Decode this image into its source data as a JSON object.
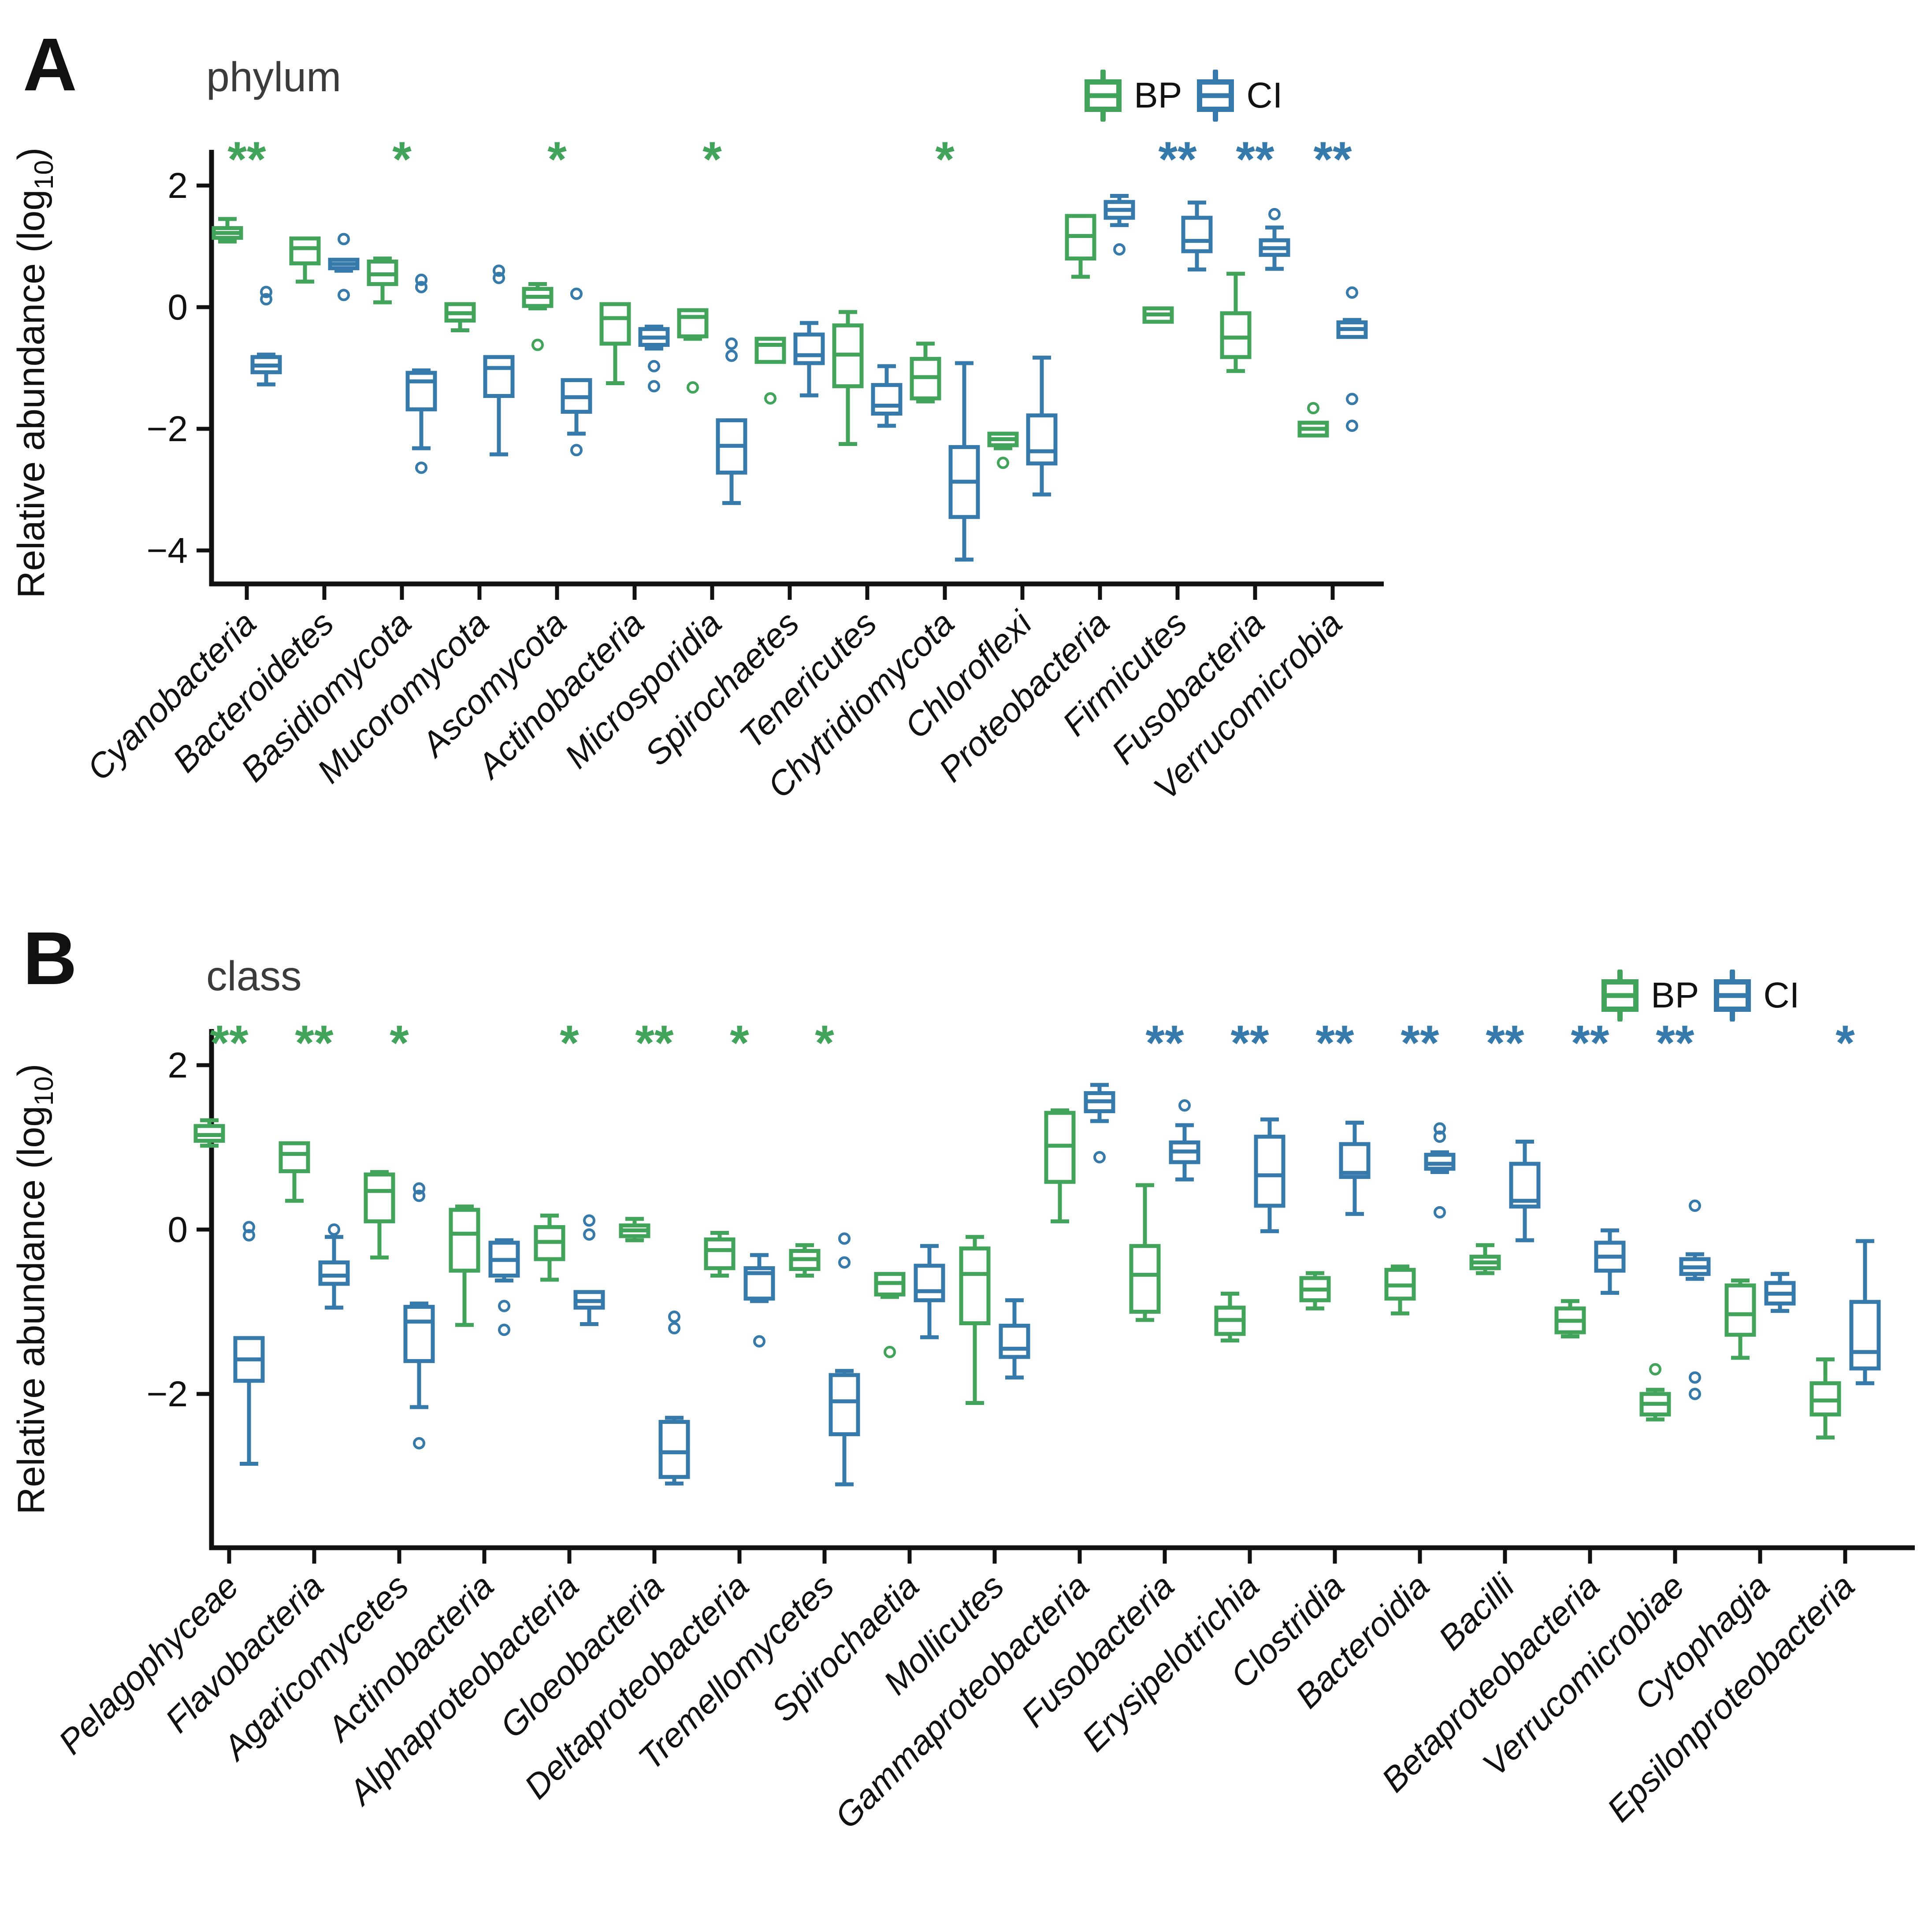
{
  "colors": {
    "bp": "#42a35a",
    "ci": "#3679ab",
    "axis": "#111111",
    "title": "#3b3b3b"
  },
  "legend": {
    "bp": "BP",
    "ci": "CI"
  },
  "chart_data": [
    {
      "type": "box",
      "panel_label": "A",
      "title": "phylum",
      "ylabel_prefix": "Relative abundance (log",
      "ylabel_sub": "10",
      "ylabel_suffix": ")",
      "yticks": [
        2,
        0,
        -2,
        -4
      ],
      "ylim": [
        -4.7,
        2.45
      ],
      "legend": {
        "bp": "BP",
        "ci": "CI"
      },
      "categories": [
        {
          "label": "Cyanobacteria",
          "sig": "**",
          "sig_group": "bp",
          "bp": {
            "stats": [
              1.08,
              1.14,
              1.22,
              1.3,
              1.45
            ],
            "fliers": []
          },
          "ci": {
            "stats": [
              -1.27,
              -1.07,
              -0.96,
              -0.82,
              -0.78
            ],
            "fliers": [
              0.25,
              0.13
            ]
          }
        },
        {
          "label": "Bacteroidetes",
          "sig": "",
          "sig_group": "",
          "bp": {
            "stats": [
              0.42,
              0.72,
              0.97,
              1.13,
              1.16
            ],
            "fliers": []
          },
          "ci": {
            "stats": [
              0.6,
              0.64,
              0.71,
              0.78,
              0.8
            ],
            "fliers": [
              1.12,
              0.2
            ]
          }
        },
        {
          "label": "Basidiomycota",
          "sig": "*",
          "sig_group": "bp",
          "bp": {
            "stats": [
              0.08,
              0.38,
              0.54,
              0.75,
              0.8
            ],
            "fliers": []
          },
          "ci": {
            "stats": [
              -2.32,
              -1.68,
              -1.22,
              -1.08,
              -1.04
            ],
            "fliers": [
              0.45,
              0.33,
              -2.64
            ]
          }
        },
        {
          "label": "Mucoromycota",
          "sig": "",
          "sig_group": "",
          "bp": {
            "stats": [
              -0.38,
              -0.22,
              -0.1,
              0.05,
              0.07
            ],
            "fliers": []
          },
          "ci": {
            "stats": [
              -2.42,
              -1.46,
              -1.0,
              -0.82,
              -0.8
            ],
            "fliers": [
              0.6,
              0.48
            ]
          }
        },
        {
          "label": "Ascomycota",
          "sig": "*",
          "sig_group": "bp",
          "bp": {
            "stats": [
              -0.02,
              0.02,
              0.17,
              0.3,
              0.38
            ],
            "fliers": [
              -0.62
            ]
          },
          "ci": {
            "stats": [
              -2.08,
              -1.72,
              -1.48,
              -1.2,
              -1.17
            ],
            "fliers": [
              0.22,
              -2.35
            ]
          }
        },
        {
          "label": "Actinobacteria",
          "sig": "",
          "sig_group": "",
          "bp": {
            "stats": [
              -1.25,
              -0.6,
              -0.18,
              0.05,
              0.08
            ],
            "fliers": []
          },
          "ci": {
            "stats": [
              -0.68,
              -0.62,
              -0.5,
              -0.36,
              -0.32
            ],
            "fliers": [
              -0.97,
              -1.3
            ]
          }
        },
        {
          "label": "Microsporidia",
          "sig": "*",
          "sig_group": "bp",
          "bp": {
            "stats": [
              -0.52,
              -0.48,
              -0.16,
              -0.05,
              -0.03
            ],
            "fliers": [
              -1.32
            ]
          },
          "ci": {
            "stats": [
              -3.22,
              -2.72,
              -2.28,
              -1.86,
              -1.84
            ],
            "fliers": [
              -0.6,
              -0.8
            ]
          }
        },
        {
          "label": "Spirochaetes",
          "sig": "",
          "sig_group": "",
          "bp": {
            "stats": [
              -0.93,
              -0.9,
              -0.62,
              -0.52,
              -0.5
            ],
            "fliers": [
              -1.5
            ]
          },
          "ci": {
            "stats": [
              -1.45,
              -0.92,
              -0.79,
              -0.45,
              -0.26
            ],
            "fliers": []
          }
        },
        {
          "label": "Tenericutes",
          "sig": "",
          "sig_group": "",
          "bp": {
            "stats": [
              -2.25,
              -1.3,
              -0.78,
              -0.3,
              -0.08
            ],
            "fliers": []
          },
          "ci": {
            "stats": [
              -1.95,
              -1.75,
              -1.62,
              -1.28,
              -0.97
            ],
            "fliers": []
          }
        },
        {
          "label": "Chytridiomycota",
          "sig": "*",
          "sig_group": "bp",
          "bp": {
            "stats": [
              -1.55,
              -1.5,
              -1.15,
              -0.85,
              -0.6
            ],
            "fliers": []
          },
          "ci": {
            "stats": [
              -4.15,
              -3.45,
              -2.87,
              -2.3,
              -0.92
            ],
            "fliers": []
          }
        },
        {
          "label": "Chloroflexi",
          "sig": "",
          "sig_group": "",
          "bp": {
            "stats": [
              -2.32,
              -2.27,
              -2.17,
              -2.08,
              -2.05
            ],
            "fliers": [
              -2.56
            ]
          },
          "ci": {
            "stats": [
              -3.08,
              -2.57,
              -2.37,
              -1.78,
              -0.83
            ],
            "fliers": []
          }
        },
        {
          "label": "Proteobacteria",
          "sig": "",
          "sig_group": "",
          "bp": {
            "stats": [
              0.5,
              0.8,
              1.17,
              1.5,
              1.52
            ],
            "fliers": []
          },
          "ci": {
            "stats": [
              1.35,
              1.47,
              1.6,
              1.73,
              1.83
            ],
            "fliers": [
              0.95
            ]
          }
        },
        {
          "label": "Firmicutes",
          "sig": "**",
          "sig_group": "ci",
          "bp": {
            "stats": [
              -0.26,
              -0.24,
              -0.12,
              -0.02,
              0.0
            ],
            "fliers": []
          },
          "ci": {
            "stats": [
              0.62,
              0.92,
              1.09,
              1.47,
              1.72
            ],
            "fliers": []
          }
        },
        {
          "label": "Fusobacteria",
          "sig": "**",
          "sig_group": "ci",
          "bp": {
            "stats": [
              -1.05,
              -0.82,
              -0.5,
              -0.1,
              0.55
            ],
            "fliers": []
          },
          "ci": {
            "stats": [
              0.63,
              0.86,
              0.97,
              1.1,
              1.31
            ],
            "fliers": [
              1.53
            ]
          }
        },
        {
          "label": "Verrucomicrobia",
          "sig": "**",
          "sig_group": "ci",
          "bp": {
            "stats": [
              -2.14,
              -2.11,
              -2.0,
              -1.9,
              -1.87
            ],
            "fliers": [
              -1.66
            ]
          },
          "ci": {
            "stats": [
              -0.52,
              -0.49,
              -0.36,
              -0.25,
              -0.21
            ],
            "fliers": [
              0.24,
              -1.51,
              -1.95
            ]
          }
        }
      ]
    },
    {
      "type": "box",
      "panel_label": "B",
      "title": "class",
      "ylabel_prefix": "Relative abundance (log",
      "ylabel_sub": "10",
      "ylabel_suffix": ")",
      "yticks": [
        2,
        0,
        -2
      ],
      "ylim": [
        -3.75,
        2.45
      ],
      "legend": {
        "bp": "BP",
        "ci": "CI"
      },
      "categories": [
        {
          "label": "Pelagophyceae",
          "sig": "**",
          "sig_group": "bp",
          "bp": {
            "stats": [
              1.02,
              1.08,
              1.15,
              1.26,
              1.33
            ],
            "fliers": []
          },
          "ci": {
            "stats": [
              -2.85,
              -1.84,
              -1.58,
              -1.32,
              -1.3
            ],
            "fliers": [
              0.03,
              -0.07
            ]
          }
        },
        {
          "label": "Flavobacteria",
          "sig": "**",
          "sig_group": "bp",
          "bp": {
            "stats": [
              0.35,
              0.71,
              0.92,
              1.05,
              1.07
            ],
            "fliers": []
          },
          "ci": {
            "stats": [
              -0.95,
              -0.66,
              -0.56,
              -0.4,
              -0.09
            ],
            "fliers": [
              0.0
            ]
          }
        },
        {
          "label": "Agaricomycetes",
          "sig": "*",
          "sig_group": "bp",
          "bp": {
            "stats": [
              -0.34,
              0.1,
              0.47,
              0.67,
              0.7
            ],
            "fliers": []
          },
          "ci": {
            "stats": [
              -2.16,
              -1.6,
              -1.12,
              -0.94,
              -0.9
            ],
            "fliers": [
              0.5,
              0.41,
              -2.6
            ]
          }
        },
        {
          "label": "Actinobacteria",
          "sig": "",
          "sig_group": "",
          "bp": {
            "stats": [
              -1.16,
              -0.5,
              -0.05,
              0.24,
              0.28
            ],
            "fliers": []
          },
          "ci": {
            "stats": [
              -0.62,
              -0.56,
              -0.37,
              -0.16,
              -0.13
            ],
            "fliers": [
              -0.93,
              -1.22
            ]
          }
        },
        {
          "label": "Alphaproteobacteria",
          "sig": "*",
          "sig_group": "bp",
          "bp": {
            "stats": [
              -0.61,
              -0.36,
              -0.15,
              0.03,
              0.17
            ],
            "fliers": []
          },
          "ci": {
            "stats": [
              -1.15,
              -0.95,
              -0.87,
              -0.76,
              -0.74
            ],
            "fliers": [
              0.11,
              -0.06
            ]
          }
        },
        {
          "label": "Gloeobacteria",
          "sig": "**",
          "sig_group": "bp",
          "bp": {
            "stats": [
              -0.13,
              -0.08,
              -0.01,
              0.05,
              0.13
            ],
            "fliers": []
          },
          "ci": {
            "stats": [
              -3.09,
              -3.01,
              -2.71,
              -2.34,
              -2.29
            ],
            "fliers": [
              -1.06,
              -1.2
            ]
          }
        },
        {
          "label": "Deltaproteobacteria",
          "sig": "*",
          "sig_group": "bp",
          "bp": {
            "stats": [
              -0.56,
              -0.47,
              -0.25,
              -0.12,
              -0.04
            ],
            "fliers": []
          },
          "ci": {
            "stats": [
              -0.87,
              -0.84,
              -0.53,
              -0.47,
              -0.31
            ],
            "fliers": [
              -1.36
            ]
          }
        },
        {
          "label": "Tremellomycetes",
          "sig": "*",
          "sig_group": "bp",
          "bp": {
            "stats": [
              -0.56,
              -0.48,
              -0.36,
              -0.26,
              -0.19
            ],
            "fliers": []
          },
          "ci": {
            "stats": [
              -3.1,
              -2.49,
              -2.09,
              -1.77,
              -1.72
            ],
            "fliers": [
              -0.11,
              -0.4
            ]
          }
        },
        {
          "label": "Spirochaetia",
          "sig": "",
          "sig_group": "",
          "bp": {
            "stats": [
              -0.82,
              -0.79,
              -0.65,
              -0.54,
              -0.52
            ],
            "fliers": [
              -1.49
            ]
          },
          "ci": {
            "stats": [
              -1.31,
              -0.86,
              -0.75,
              -0.44,
              -0.2
            ],
            "fliers": []
          }
        },
        {
          "label": "Mollicutes",
          "sig": "",
          "sig_group": "",
          "bp": {
            "stats": [
              -2.11,
              -1.14,
              -0.54,
              -0.23,
              -0.09
            ],
            "fliers": []
          },
          "ci": {
            "stats": [
              -1.8,
              -1.55,
              -1.45,
              -1.17,
              -0.86
            ],
            "fliers": []
          }
        },
        {
          "label": "Gammaproteobacteria",
          "sig": "",
          "sig_group": "",
          "bp": {
            "stats": [
              0.1,
              0.58,
              1.02,
              1.42,
              1.45
            ],
            "fliers": []
          },
          "ci": {
            "stats": [
              1.32,
              1.44,
              1.56,
              1.66,
              1.76
            ],
            "fliers": [
              0.88
            ]
          }
        },
        {
          "label": "Fusobacteria",
          "sig": "**",
          "sig_group": "ci",
          "bp": {
            "stats": [
              -1.1,
              -1.0,
              -0.55,
              -0.2,
              0.54
            ],
            "fliers": []
          },
          "ci": {
            "stats": [
              0.61,
              0.82,
              0.95,
              1.06,
              1.27
            ],
            "fliers": [
              1.51
            ]
          }
        },
        {
          "label": "Erysipelotrichia",
          "sig": "**",
          "sig_group": "ci",
          "bp": {
            "stats": [
              -1.35,
              -1.27,
              -1.1,
              -0.95,
              -0.78
            ],
            "fliers": []
          },
          "ci": {
            "stats": [
              -0.02,
              0.29,
              0.66,
              1.13,
              1.34
            ],
            "fliers": []
          }
        },
        {
          "label": "Clostridia",
          "sig": "**",
          "sig_group": "ci",
          "bp": {
            "stats": [
              -0.96,
              -0.86,
              -0.73,
              -0.59,
              -0.53
            ],
            "fliers": []
          },
          "ci": {
            "stats": [
              0.19,
              0.64,
              0.69,
              1.04,
              1.3
            ],
            "fliers": []
          }
        },
        {
          "label": "Bacteroidia",
          "sig": "**",
          "sig_group": "ci",
          "bp": {
            "stats": [
              -1.02,
              -0.84,
              -0.68,
              -0.49,
              -0.45
            ],
            "fliers": []
          },
          "ci": {
            "stats": [
              0.7,
              0.74,
              0.8,
              0.91,
              0.94
            ],
            "fliers": [
              1.23,
              1.13,
              0.21
            ]
          }
        },
        {
          "label": "Bacilli",
          "sig": "**",
          "sig_group": "ci",
          "bp": {
            "stats": [
              -0.53,
              -0.47,
              -0.4,
              -0.33,
              -0.19
            ],
            "fliers": []
          },
          "ci": {
            "stats": [
              -0.13,
              0.28,
              0.35,
              0.8,
              1.07
            ],
            "fliers": []
          }
        },
        {
          "label": "Betaproteobacteria",
          "sig": "**",
          "sig_group": "ci",
          "bp": {
            "stats": [
              -1.3,
              -1.25,
              -1.11,
              -0.96,
              -0.87
            ],
            "fliers": []
          },
          "ci": {
            "stats": [
              -0.77,
              -0.5,
              -0.33,
              -0.16,
              -0.01
            ],
            "fliers": []
          }
        },
        {
          "label": "Verrucomicrobiae",
          "sig": "**",
          "sig_group": "ci",
          "bp": {
            "stats": [
              -2.31,
              -2.25,
              -2.12,
              -2.0,
              -1.95
            ],
            "fliers": [
              -1.7
            ]
          },
          "ci": {
            "stats": [
              -0.6,
              -0.54,
              -0.46,
              -0.36,
              -0.3
            ],
            "fliers": [
              0.29,
              -1.8,
              -2.0
            ]
          }
        },
        {
          "label": "Cytophagia",
          "sig": "",
          "sig_group": "",
          "bp": {
            "stats": [
              -1.56,
              -1.28,
              -1.03,
              -0.68,
              -0.62
            ],
            "fliers": []
          },
          "ci": {
            "stats": [
              -0.99,
              -0.9,
              -0.78,
              -0.65,
              -0.54
            ],
            "fliers": []
          }
        },
        {
          "label": "Epsilonproteobacteria",
          "sig": "*",
          "sig_group": "ci",
          "bp": {
            "stats": [
              -2.53,
              -2.25,
              -2.08,
              -1.87,
              -1.58
            ],
            "fliers": []
          },
          "ci": {
            "stats": [
              -1.87,
              -1.69,
              -1.49,
              -0.88,
              -0.14
            ],
            "fliers": []
          }
        }
      ]
    }
  ]
}
